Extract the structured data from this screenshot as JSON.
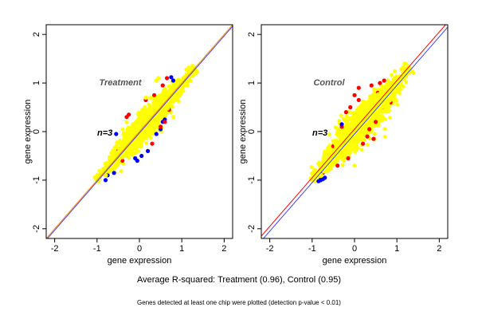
{
  "figure": {
    "caption": "Average R-squared: Treatment (0.96), Control (0.95)",
    "footnote": "Genes detected at least one chip were plotted (detection p-value < 0.01)"
  },
  "colors": {
    "point_primary": "#ffff00",
    "point_red": "#ff0000",
    "point_blue": "#0000ff",
    "line_orange": "#ff8c00",
    "line_blue": "#4040ff",
    "line_red": "#ff0000",
    "annotation": "#555555"
  },
  "chart_data": [
    {
      "type": "scatter",
      "title": "Treatment",
      "annotation": "n=3",
      "xlabel": "gene expression",
      "ylabel": "gene expression",
      "xlim": [
        -2.2,
        2.2
      ],
      "ylim": [
        -2.2,
        2.2
      ],
      "x_ticks": [
        -2,
        -1,
        0,
        1,
        2
      ],
      "y_ticks": [
        -2,
        -1,
        0,
        1,
        2
      ],
      "grid": false,
      "point_cloud": {
        "x_range": [
          -1.0,
          1.3
        ],
        "y_range": [
          -1.1,
          1.3
        ],
        "correlation": 0.96
      },
      "highlighted_points": [
        {
          "color": "blue",
          "x": 0.5,
          "y": 0.05
        },
        {
          "color": "blue",
          "x": 0.55,
          "y": 0.2
        },
        {
          "color": "blue",
          "x": 0.6,
          "y": 0.25
        },
        {
          "color": "blue",
          "x": 0.75,
          "y": 1.12
        },
        {
          "color": "blue",
          "x": 0.8,
          "y": 1.05
        },
        {
          "color": "blue",
          "x": -0.1,
          "y": -0.55
        },
        {
          "color": "blue",
          "x": -0.05,
          "y": -0.6
        },
        {
          "color": "blue",
          "x": 0.05,
          "y": -0.5
        },
        {
          "color": "blue",
          "x": -0.75,
          "y": -0.9
        },
        {
          "color": "blue",
          "x": -0.8,
          "y": -1.0
        },
        {
          "color": "blue",
          "x": -0.6,
          "y": -0.85
        },
        {
          "color": "blue",
          "x": 0.4,
          "y": -0.05
        },
        {
          "color": "blue",
          "x": -0.55,
          "y": -0.05
        },
        {
          "color": "blue",
          "x": 0.2,
          "y": -0.4
        },
        {
          "color": "red",
          "x": 0.65,
          "y": 1.1
        },
        {
          "color": "red",
          "x": 0.55,
          "y": 0.95
        },
        {
          "color": "red",
          "x": 0.35,
          "y": 0.75
        },
        {
          "color": "red",
          "x": -0.3,
          "y": 0.3
        },
        {
          "color": "red",
          "x": -0.25,
          "y": 0.35
        },
        {
          "color": "red",
          "x": 0.5,
          "y": 0.1
        },
        {
          "color": "red",
          "x": 0.3,
          "y": -0.25
        },
        {
          "color": "red",
          "x": -0.5,
          "y": -0.4
        },
        {
          "color": "red",
          "x": -0.7,
          "y": -0.75
        },
        {
          "color": "red",
          "x": 0.6,
          "y": 0.2
        },
        {
          "color": "red",
          "x": -0.4,
          "y": -0.6
        },
        {
          "color": "red",
          "x": 0.15,
          "y": 0.65
        },
        {
          "color": "red",
          "x": 0.9,
          "y": 0.85
        },
        {
          "color": "red",
          "x": 0.7,
          "y": 0.45
        },
        {
          "color": "yellow",
          "x": 0.45,
          "y": 1.1
        },
        {
          "color": "yellow",
          "x": 0.4,
          "y": 1.05
        },
        {
          "color": "yellow",
          "x": 0.15,
          "y": 0.7
        },
        {
          "color": "yellow",
          "x": -0.35,
          "y": -0.15
        },
        {
          "color": "yellow",
          "x": 0.8,
          "y": 0.3
        }
      ],
      "diagonal_lines": [
        {
          "color": "orange",
          "intercept": 0.0,
          "slope": 1.0
        },
        {
          "color": "blue",
          "intercept": -0.03,
          "slope": 1.0
        }
      ]
    },
    {
      "type": "scatter",
      "title": "Control",
      "annotation": "n=3",
      "xlabel": "gene expression",
      "ylabel": "gene expression",
      "xlim": [
        -2.2,
        2.2
      ],
      "ylim": [
        -2.2,
        2.2
      ],
      "x_ticks": [
        -2,
        -1,
        0,
        1,
        2
      ],
      "y_ticks": [
        -2,
        -1,
        0,
        1,
        2
      ],
      "grid": false,
      "point_cloud": {
        "x_range": [
          -1.0,
          1.3
        ],
        "y_range": [
          -1.0,
          1.3
        ],
        "correlation": 0.95
      },
      "highlighted_points": [
        {
          "color": "red",
          "x": 0.4,
          "y": 0.95
        },
        {
          "color": "red",
          "x": 0.1,
          "y": 0.65
        },
        {
          "color": "red",
          "x": 0.55,
          "y": 0.8
        },
        {
          "color": "red",
          "x": 0.25,
          "y": 0.35
        },
        {
          "color": "red",
          "x": 0.3,
          "y": -0.1
        },
        {
          "color": "red",
          "x": -0.1,
          "y": 0.5
        },
        {
          "color": "red",
          "x": -0.2,
          "y": 0.4
        },
        {
          "color": "red",
          "x": 0.5,
          "y": 0.2
        },
        {
          "color": "red",
          "x": 0.65,
          "y": 0.5
        },
        {
          "color": "red",
          "x": -0.5,
          "y": -0.3
        },
        {
          "color": "red",
          "x": -0.6,
          "y": -0.5
        },
        {
          "color": "red",
          "x": 0.2,
          "y": -0.25
        },
        {
          "color": "red",
          "x": -0.3,
          "y": 0.1
        },
        {
          "color": "red",
          "x": 0.7,
          "y": 1.05
        },
        {
          "color": "red",
          "x": -0.8,
          "y": -0.95
        },
        {
          "color": "red",
          "x": -0.75,
          "y": -0.85
        },
        {
          "color": "red",
          "x": 0.35,
          "y": 0.05
        },
        {
          "color": "red",
          "x": 0.0,
          "y": 0.75
        },
        {
          "color": "red",
          "x": -0.4,
          "y": -0.7
        },
        {
          "color": "red",
          "x": 0.1,
          "y": 0.9
        },
        {
          "color": "red",
          "x": 0.85,
          "y": 0.6
        },
        {
          "color": "red",
          "x": 0.45,
          "y": -0.15
        },
        {
          "color": "red",
          "x": -0.15,
          "y": -0.55
        },
        {
          "color": "red",
          "x": 0.6,
          "y": 1.0
        },
        {
          "color": "blue",
          "x": -0.8,
          "y": -1.0
        },
        {
          "color": "blue",
          "x": -0.85,
          "y": -1.02
        },
        {
          "color": "blue",
          "x": -0.7,
          "y": -0.95
        },
        {
          "color": "blue",
          "x": -0.75,
          "y": -0.98
        },
        {
          "color": "blue",
          "x": -0.3,
          "y": 0.15
        },
        {
          "color": "yellow",
          "x": 0.0,
          "y": -0.7
        },
        {
          "color": "yellow",
          "x": 0.2,
          "y": 0.3
        }
      ],
      "diagonal_lines": [
        {
          "color": "red",
          "intercept": 0.05,
          "slope": 1.0
        },
        {
          "color": "blue",
          "intercept": -0.05,
          "slope": 1.0
        }
      ]
    }
  ]
}
